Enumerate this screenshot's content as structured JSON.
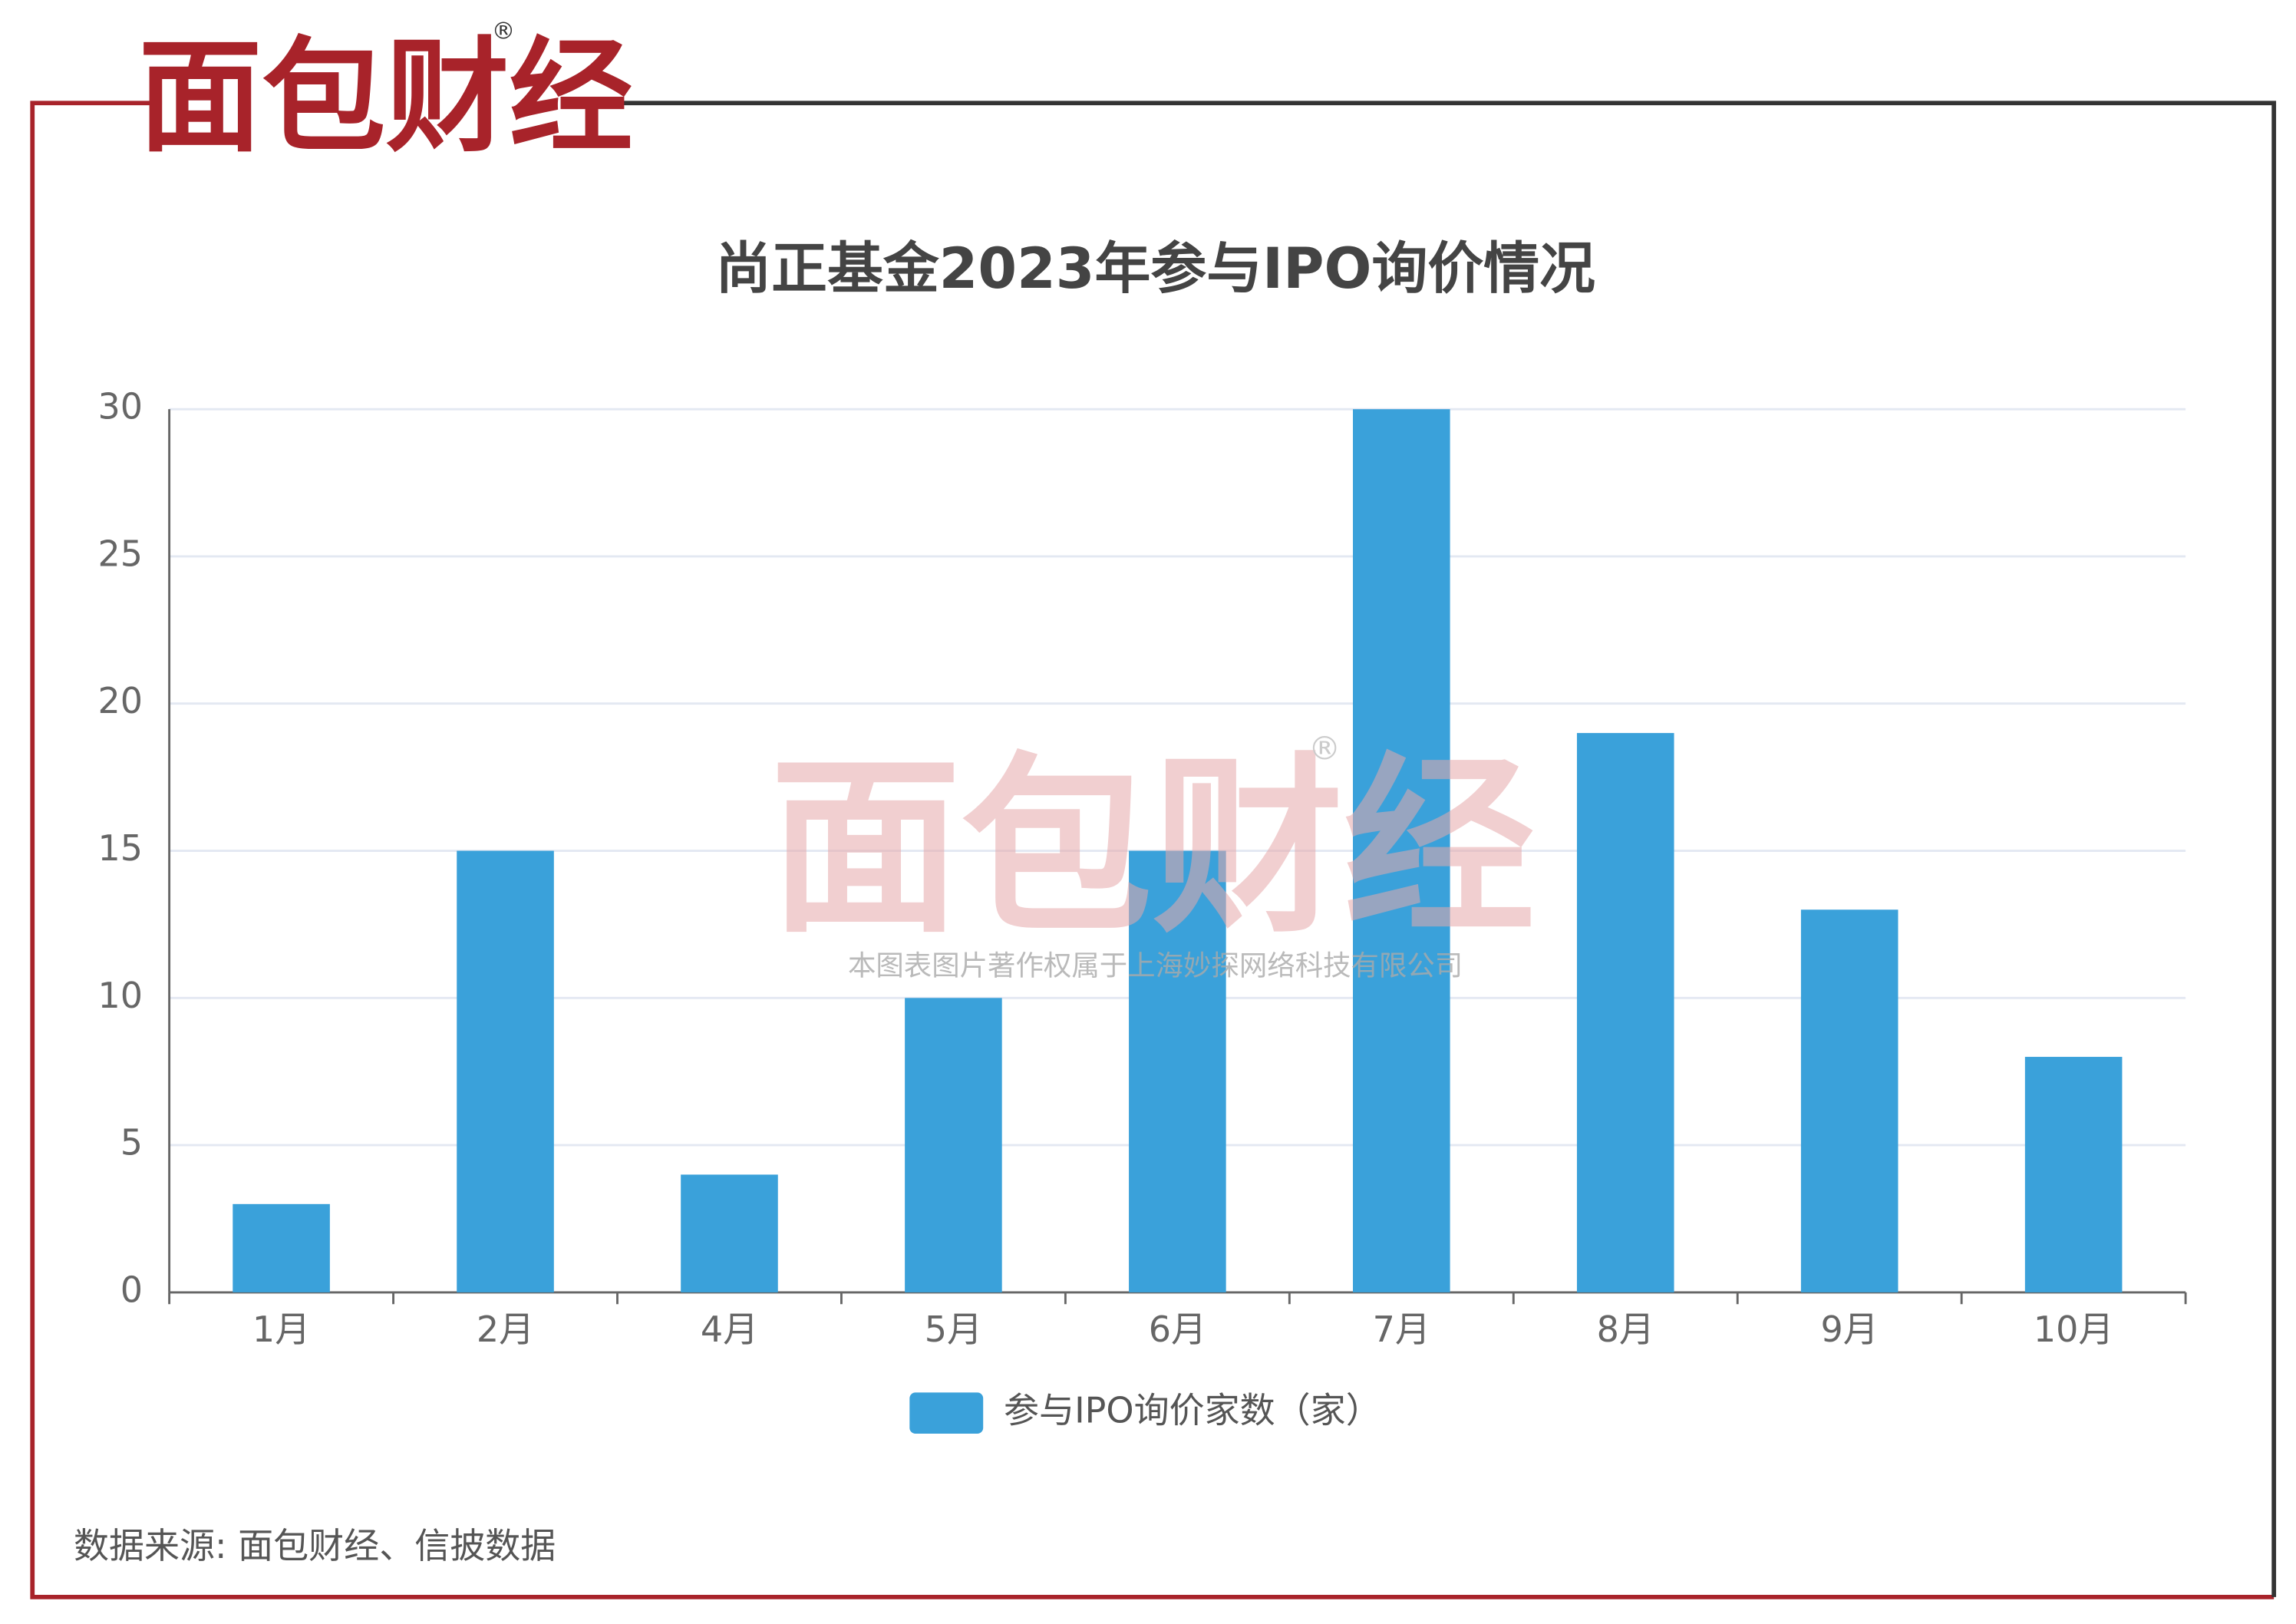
{
  "logo": {
    "text": "面包财经",
    "mark": "®"
  },
  "watermark": {
    "text": "面包财经",
    "mark": "®",
    "note": "本图表图片著作权属于上海妙探网络科技有限公司"
  },
  "source": "数据来源: 面包财经、信披数据",
  "chart_data": {
    "type": "bar",
    "title": "尚正基金2023年参与IPO询价情况",
    "categories": [
      "1月",
      "2月",
      "4月",
      "5月",
      "6月",
      "7月",
      "8月",
      "9月",
      "10月"
    ],
    "series": [
      {
        "name": "参与IPO询价家数（家）",
        "color": "#3aa1da",
        "values": [
          3,
          15,
          4,
          10,
          15,
          30,
          19,
          13,
          8
        ]
      }
    ],
    "ylim": [
      0,
      30
    ],
    "yticks": [
      0,
      5,
      10,
      15,
      20,
      25,
      30
    ],
    "grid": true,
    "legend": "bottom"
  }
}
